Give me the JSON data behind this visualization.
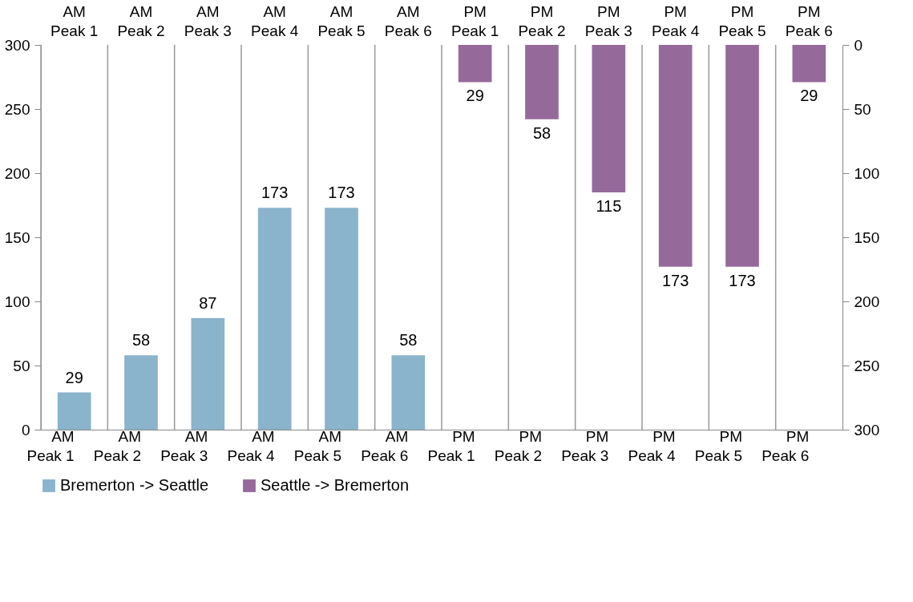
{
  "chart_data": {
    "type": "bar",
    "categories": [
      "AM Peak 1",
      "AM Peak 2",
      "AM Peak 3",
      "AM Peak 4",
      "AM Peak 5",
      "AM Peak 6",
      "PM Peak 1",
      "PM Peak 2",
      "PM Peak 3",
      "PM Peak 4",
      "PM Peak 5",
      "PM Peak 6"
    ],
    "series": [
      {
        "name": "Bremerton -> Seattle",
        "color": "#8ab3cc",
        "values": [
          29,
          58,
          87,
          173,
          173,
          58,
          null,
          null,
          null,
          null,
          null,
          null
        ]
      },
      {
        "name": "Seattle -> Bremerton",
        "color": "#956a9b",
        "axis": "y2",
        "values": [
          null,
          null,
          null,
          null,
          null,
          null,
          29,
          58,
          115,
          173,
          173,
          29
        ]
      }
    ],
    "ylim": [
      0,
      300
    ],
    "yticks": [
      0,
      50,
      100,
      150,
      200,
      250,
      300
    ],
    "y2lim": [
      300,
      0
    ],
    "y2ticks": [
      0,
      50,
      100,
      150,
      200,
      250,
      300
    ],
    "data_labels": true,
    "grid": "x",
    "legend": "bottom"
  }
}
